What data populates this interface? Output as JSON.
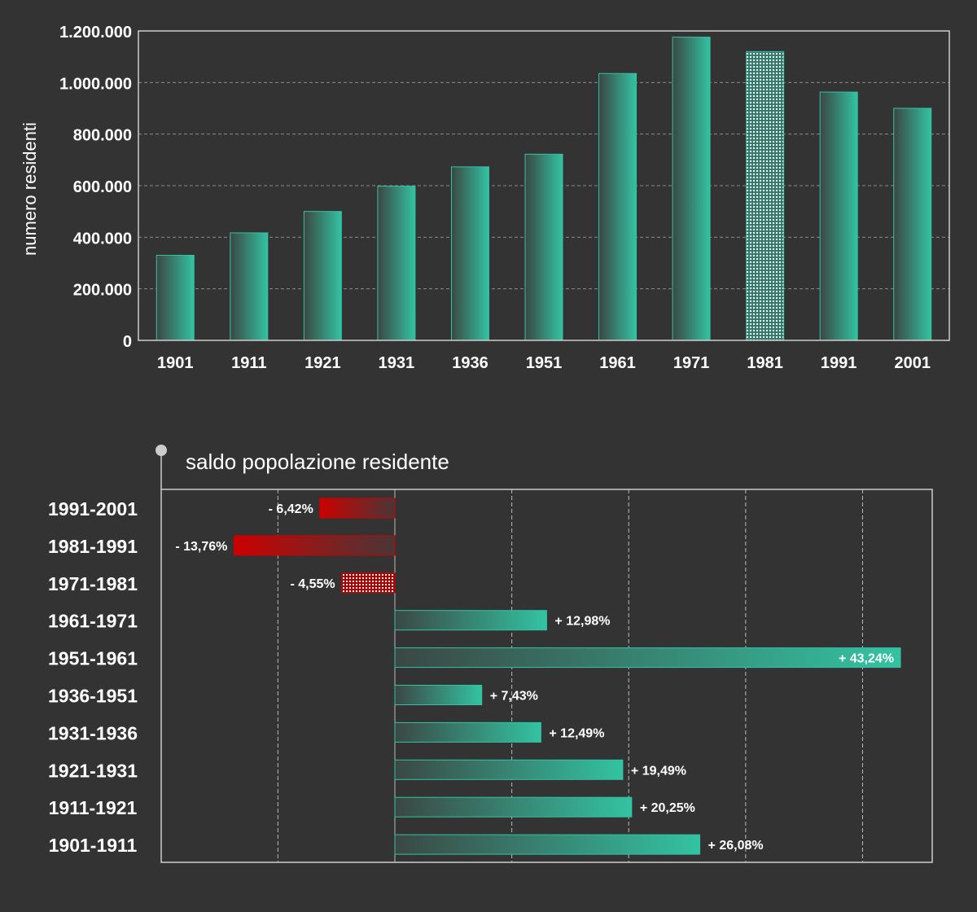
{
  "chart_data": [
    {
      "type": "bar",
      "ylabel": "numero residenti",
      "ylim": [
        0,
        1200000
      ],
      "yticks": [
        0,
        200000,
        400000,
        600000,
        800000,
        1000000,
        1200000
      ],
      "ytick_labels": [
        "0",
        "200.000",
        "400.000",
        "600.000",
        "800.000",
        "1.000.000",
        "1.200.000"
      ],
      "categories": [
        "1901",
        "1911",
        "1921",
        "1931",
        "1936",
        "1951",
        "1961",
        "1971",
        "1981",
        "1991",
        "2001"
      ],
      "values": [
        330000,
        417000,
        500000,
        598000,
        673000,
        722000,
        1035000,
        1176000,
        1120000,
        963000,
        900000
      ],
      "highlighted_category": "1981",
      "grid": true
    },
    {
      "type": "bar",
      "orientation": "horizontal",
      "title": "saldo popolazione residente",
      "categories": [
        "1991-2001",
        "1981-1991",
        "1971-1981",
        "1961-1971",
        "1951-1961",
        "1936-1951",
        "1931-1936",
        "1921-1931",
        "1911-1921",
        "1901-1911"
      ],
      "values": [
        -6.42,
        -13.76,
        -4.55,
        12.98,
        43.24,
        7.43,
        12.49,
        19.49,
        20.25,
        26.08
      ],
      "value_labels": [
        "- 6,42%",
        "- 13,76%",
        "- 4,55%",
        "+ 12,98%",
        "+ 43,24%",
        "+ 7,43%",
        "+ 12,49%",
        "+ 19,49%",
        "+ 20,25%",
        "+ 26,08%"
      ],
      "xlim": [
        -20,
        45
      ],
      "highlighted_category": "1971-1981",
      "grid": true
    }
  ],
  "colors": {
    "background": "#333333",
    "positive": "#33c3a2",
    "negative": "#cc0000",
    "axis": "#cccccc"
  }
}
